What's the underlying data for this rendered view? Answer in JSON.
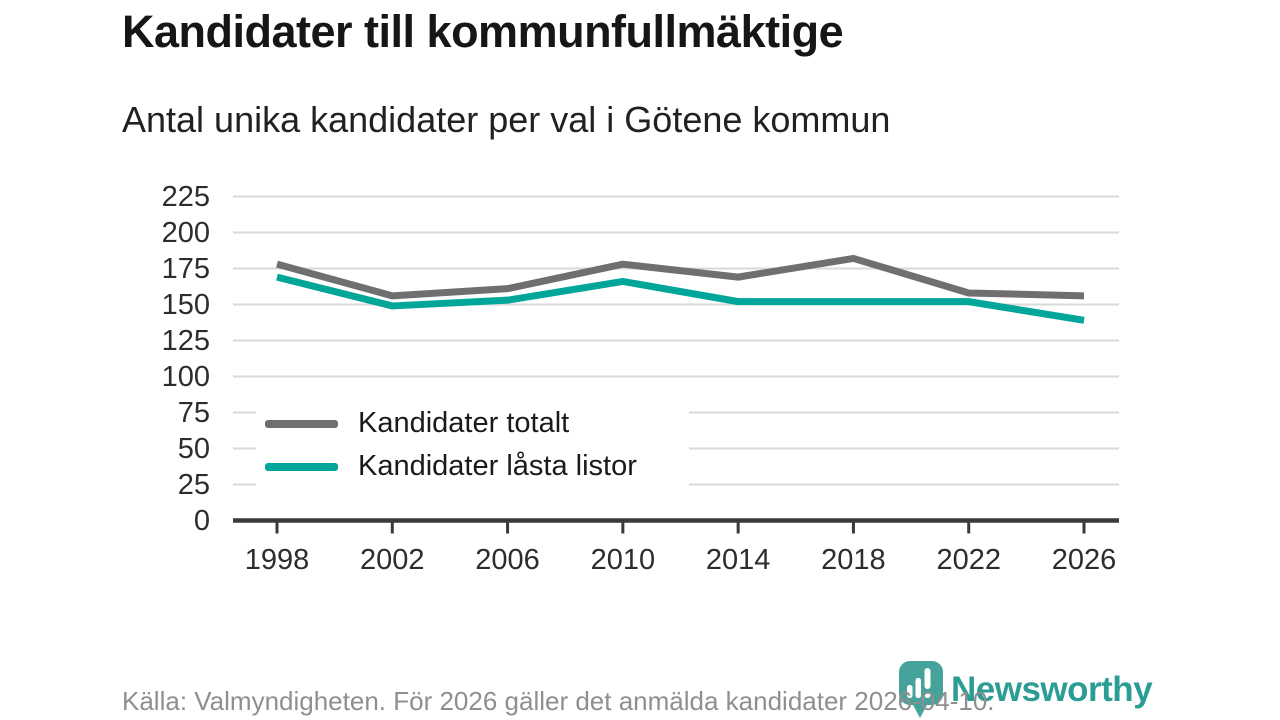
{
  "header": {
    "title": "Kandidater till kommunfullmäktige",
    "subtitle": "Antal unika kandidater per val i Götene kommun"
  },
  "chart_data": {
    "type": "line",
    "x": [
      "1998",
      "2002",
      "2006",
      "2010",
      "2014",
      "2018",
      "2022",
      "2026"
    ],
    "series": [
      {
        "name": "Kandidater totalt",
        "color": "#6f6f72",
        "values": [
          178,
          156,
          161,
          178,
          169,
          182,
          158,
          156
        ]
      },
      {
        "name": "Kandidater låsta listor",
        "color": "#00a69a",
        "values": [
          169,
          149,
          153,
          166,
          152,
          152,
          152,
          139
        ]
      }
    ],
    "title": "Kandidater till kommunfullmäktige",
    "subtitle": "Antal unika kandidater per val i Götene kommun",
    "xlabel": "",
    "ylabel": "",
    "ylim": [
      0,
      225
    ],
    "yticks": [
      0,
      25,
      50,
      75,
      100,
      125,
      150,
      175,
      200,
      225
    ],
    "grid": "horizontal",
    "legend_position": "inside-bottom-left"
  },
  "footer": {
    "source": "Källa: Valmyndigheten. För 2026 gäller det anmälda kandidater 2026-04-10."
  },
  "logo": {
    "text": "Newsworthy",
    "icon": "newsworthy-speech-bubble-bar-chart-icon",
    "icon_color": "#46a39b",
    "text_color": "#2b9d95"
  }
}
